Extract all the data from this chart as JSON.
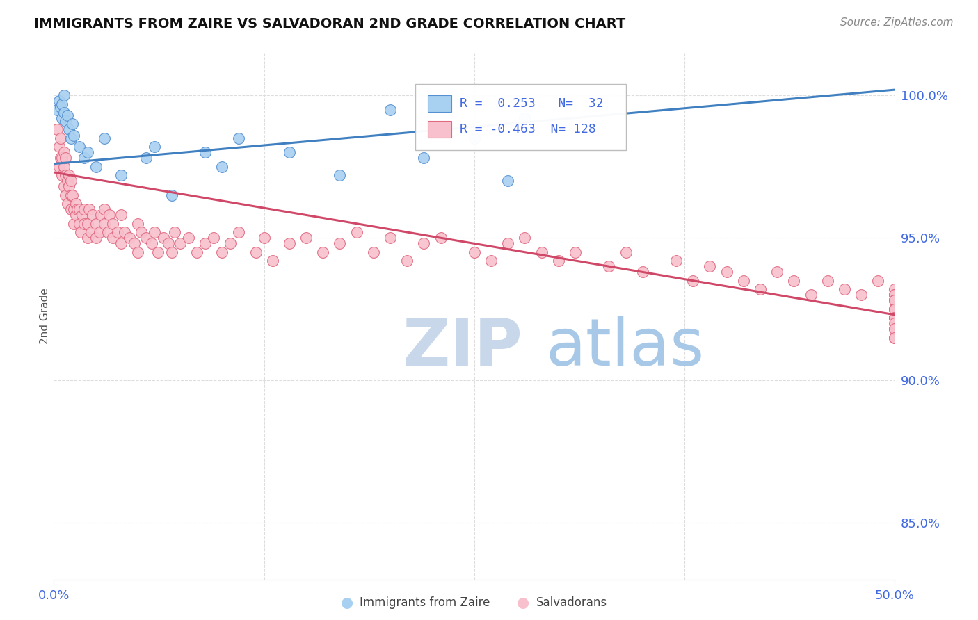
{
  "title": "IMMIGRANTS FROM ZAIRE VS SALVADORAN 2ND GRADE CORRELATION CHART",
  "source": "Source: ZipAtlas.com",
  "ylabel": "2nd Grade",
  "xmin": 0.0,
  "xmax": 50.0,
  "ymin": 83.0,
  "ymax": 101.5,
  "blue_R": 0.253,
  "blue_N": 32,
  "pink_R": -0.463,
  "pink_N": 128,
  "legend_label_blue": "Immigrants from Zaire",
  "legend_label_pink": "Salvadorans",
  "blue_fill_color": "#a8d0f0",
  "pink_fill_color": "#f8c0cc",
  "blue_edge_color": "#5590d0",
  "pink_edge_color": "#e06880",
  "blue_line_color": "#4080c0",
  "pink_line_color": "#d04868",
  "axis_label_color": "#4169e1",
  "watermark_zip_color": "#c8d8ea",
  "watermark_atlas_color": "#a8c8e8",
  "blue_trend_x0": 0.0,
  "blue_trend_y0": 97.6,
  "blue_trend_x1": 50.0,
  "blue_trend_y1": 100.2,
  "pink_trend_x0": 0.0,
  "pink_trend_y0": 97.3,
  "pink_trend_x1": 50.0,
  "pink_trend_y1": 92.3,
  "blue_x": [
    0.2,
    0.3,
    0.4,
    0.5,
    0.5,
    0.6,
    0.6,
    0.7,
    0.8,
    0.9,
    1.0,
    1.1,
    1.2,
    1.5,
    1.8,
    2.0,
    2.5,
    3.0,
    4.0,
    5.5,
    6.0,
    7.0,
    9.0,
    10.0,
    11.0,
    14.0,
    17.0,
    20.0,
    22.0,
    25.0,
    27.0,
    28.0
  ],
  "blue_y": [
    99.5,
    99.8,
    99.6,
    99.2,
    99.7,
    99.4,
    100.0,
    99.1,
    99.3,
    98.8,
    98.5,
    99.0,
    98.6,
    98.2,
    97.8,
    98.0,
    97.5,
    98.5,
    97.2,
    97.8,
    98.2,
    96.5,
    98.0,
    97.5,
    98.5,
    98.0,
    97.2,
    99.5,
    97.8,
    98.5,
    97.0,
    99.2
  ],
  "pink_x": [
    0.2,
    0.3,
    0.3,
    0.4,
    0.4,
    0.5,
    0.5,
    0.6,
    0.6,
    0.6,
    0.7,
    0.7,
    0.7,
    0.8,
    0.8,
    0.9,
    0.9,
    1.0,
    1.0,
    1.0,
    1.1,
    1.2,
    1.2,
    1.3,
    1.3,
    1.4,
    1.5,
    1.5,
    1.6,
    1.7,
    1.8,
    1.8,
    2.0,
    2.0,
    2.1,
    2.2,
    2.3,
    2.5,
    2.5,
    2.7,
    2.8,
    3.0,
    3.0,
    3.2,
    3.3,
    3.5,
    3.5,
    3.8,
    4.0,
    4.0,
    4.2,
    4.5,
    4.8,
    5.0,
    5.0,
    5.2,
    5.5,
    5.8,
    6.0,
    6.2,
    6.5,
    6.8,
    7.0,
    7.2,
    7.5,
    8.0,
    8.5,
    9.0,
    9.5,
    10.0,
    10.5,
    11.0,
    12.0,
    12.5,
    13.0,
    14.0,
    15.0,
    16.0,
    17.0,
    18.0,
    19.0,
    20.0,
    21.0,
    22.0,
    23.0,
    25.0,
    26.0,
    27.0,
    28.0,
    29.0,
    30.0,
    31.0,
    33.0,
    34.0,
    35.0,
    37.0,
    38.0,
    39.0,
    40.0,
    41.0,
    42.0,
    43.0,
    44.0,
    45.0,
    46.0,
    47.0,
    48.0,
    49.0,
    50.0,
    50.0,
    50.0,
    50.0,
    50.0,
    50.0,
    50.0,
    50.0,
    50.0,
    50.0,
    50.0,
    50.0,
    50.0,
    50.0,
    50.0,
    50.0,
    50.0,
    50.0,
    50.0,
    50.0
  ],
  "pink_y": [
    98.8,
    97.5,
    98.2,
    97.8,
    98.5,
    97.2,
    97.8,
    97.5,
    98.0,
    96.8,
    97.2,
    96.5,
    97.8,
    97.0,
    96.2,
    96.8,
    97.2,
    96.5,
    97.0,
    96.0,
    96.5,
    96.0,
    95.5,
    96.2,
    95.8,
    96.0,
    95.5,
    96.0,
    95.2,
    95.8,
    95.5,
    96.0,
    95.0,
    95.5,
    96.0,
    95.2,
    95.8,
    95.0,
    95.5,
    95.2,
    95.8,
    95.5,
    96.0,
    95.2,
    95.8,
    95.0,
    95.5,
    95.2,
    95.8,
    94.8,
    95.2,
    95.0,
    94.8,
    95.5,
    94.5,
    95.2,
    95.0,
    94.8,
    95.2,
    94.5,
    95.0,
    94.8,
    94.5,
    95.2,
    94.8,
    95.0,
    94.5,
    94.8,
    95.0,
    94.5,
    94.8,
    95.2,
    94.5,
    95.0,
    94.2,
    94.8,
    95.0,
    94.5,
    94.8,
    95.2,
    94.5,
    95.0,
    94.2,
    94.8,
    95.0,
    94.5,
    94.2,
    94.8,
    95.0,
    94.5,
    94.2,
    94.5,
    94.0,
    94.5,
    93.8,
    94.2,
    93.5,
    94.0,
    93.8,
    93.5,
    93.2,
    93.8,
    93.5,
    93.0,
    93.5,
    93.2,
    93.0,
    93.5,
    93.2,
    92.8,
    93.0,
    92.5,
    93.0,
    92.8,
    92.5,
    92.2,
    92.8,
    92.5,
    92.2,
    92.8,
    92.5,
    92.2,
    91.8,
    92.2,
    91.5,
    92.0,
    91.8,
    91.5
  ],
  "grid_color": "#dddddd",
  "spine_color": "#cccccc"
}
